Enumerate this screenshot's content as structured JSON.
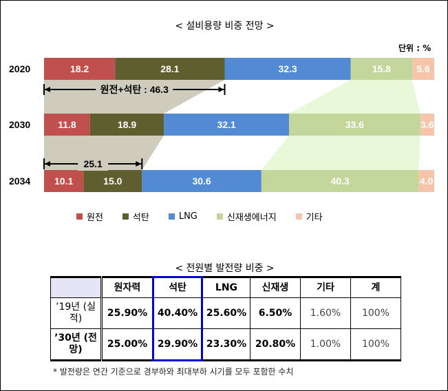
{
  "chart_data": {
    "type": "bar",
    "stacked": true,
    "orientation": "horizontal",
    "title": "< 설비용량 비중 전망 >",
    "unit_label": "단위 : %",
    "categories": [
      "2020",
      "2030",
      "2034"
    ],
    "series": [
      {
        "name": "원전",
        "color": "#c0504d",
        "values": [
          18.2,
          11.8,
          10.1
        ]
      },
      {
        "name": "석탄",
        "color": "#5f5e2f",
        "values": [
          28.1,
          18.9,
          15.0
        ]
      },
      {
        "name": "LNG",
        "color": "#528bd4",
        "values": [
          32.3,
          32.1,
          30.6
        ]
      },
      {
        "name": "신재생에너지",
        "color": "#c3d69b",
        "values": [
          15.8,
          33.6,
          40.3
        ]
      },
      {
        "name": "기타",
        "color": "#f6c4a8",
        "values": [
          5.6,
          3.6,
          4.0
        ]
      }
    ],
    "value_labels": [
      [
        "18.2",
        "28.1",
        "32.3",
        "15.8",
        "5.6"
      ],
      [
        "11.8",
        "18.9",
        "32.1",
        "33.6",
        "3.6"
      ],
      [
        "10.1",
        "15.0",
        "30.6",
        "40.3",
        "4.0"
      ]
    ],
    "annotations": [
      "원전+석탄 : 46.3",
      "25.1"
    ],
    "xlim": [
      0,
      100
    ],
    "legend": "bottom"
  },
  "table": {
    "title": "< 전원별 발전량 비중 >",
    "headers": [
      "",
      "원자력",
      "석탄",
      "LNG",
      "신재생",
      "기타",
      "계"
    ],
    "rows": [
      {
        "label": "’19년 (실적)",
        "values": [
          "25.90%",
          "40.40%",
          "25.60%",
          "6.50%",
          "1.60%",
          "100%"
        ]
      },
      {
        "label": "’30년 (전망)",
        "values": [
          "25.00%",
          "29.90%",
          "23.30%",
          "20.80%",
          "1.00%",
          "100%"
        ]
      }
    ],
    "footnote": "* 발전량은 연간 기준으로 경부하와 최대부하 시기를 모두 포함한 수치"
  }
}
